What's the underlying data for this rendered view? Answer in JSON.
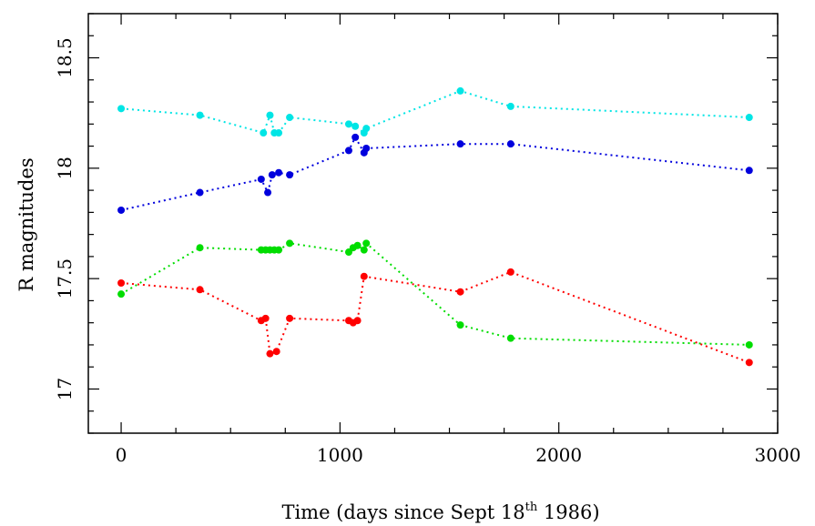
{
  "chart_data": {
    "type": "scatter",
    "title": "",
    "xlabel": "Time (days since Sept 18",
    "xlabel_sup": "th",
    "xlabel_end": " 1986)",
    "ylabel": "R magnitudes",
    "xlim": [
      -150,
      3000
    ],
    "ylim": [
      18.7,
      16.8
    ],
    "y_inverted": true,
    "grid": false,
    "x_ticks": [
      "0",
      "1000",
      "2000",
      "3000"
    ],
    "y_ticks": [
      "17",
      "17.5",
      "18",
      "18.5"
    ],
    "x_tick_values": [
      0,
      1000,
      2000,
      3000
    ],
    "y_tick_values": [
      17,
      17.5,
      18,
      18.5
    ],
    "series": [
      {
        "color": "#ff0000",
        "x": [
          0,
          360,
          640,
          660,
          680,
          710,
          770,
          1040,
          1060,
          1080,
          1110,
          1550,
          1780,
          2870
        ],
        "y": [
          17.48,
          17.45,
          17.31,
          17.32,
          17.16,
          17.17,
          17.32,
          17.31,
          17.3,
          17.31,
          17.51,
          17.44,
          17.53,
          17.12
        ]
      },
      {
        "color": "#00dd00",
        "x": [
          0,
          360,
          640,
          660,
          680,
          700,
          720,
          770,
          1040,
          1060,
          1080,
          1110,
          1120,
          1550,
          1780,
          2870
        ],
        "y": [
          17.43,
          17.64,
          17.63,
          17.63,
          17.63,
          17.63,
          17.63,
          17.66,
          17.62,
          17.64,
          17.65,
          17.63,
          17.66,
          17.29,
          17.23,
          17.2
        ]
      },
      {
        "color": "#0000dd",
        "x": [
          0,
          360,
          640,
          670,
          690,
          720,
          770,
          1040,
          1070,
          1110,
          1120,
          1550,
          1780,
          2870
        ],
        "y": [
          17.81,
          17.89,
          17.95,
          17.89,
          17.97,
          17.98,
          17.97,
          18.08,
          18.14,
          18.07,
          18.09,
          18.11,
          18.11,
          17.99
        ]
      },
      {
        "color": "#00e5e5",
        "x": [
          0,
          360,
          650,
          680,
          700,
          720,
          770,
          1040,
          1070,
          1110,
          1120,
          1550,
          1780,
          2870
        ],
        "y": [
          18.27,
          18.24,
          18.16,
          18.24,
          18.16,
          18.16,
          18.23,
          18.2,
          18.19,
          18.16,
          18.18,
          18.35,
          18.28,
          18.23
        ]
      }
    ]
  }
}
